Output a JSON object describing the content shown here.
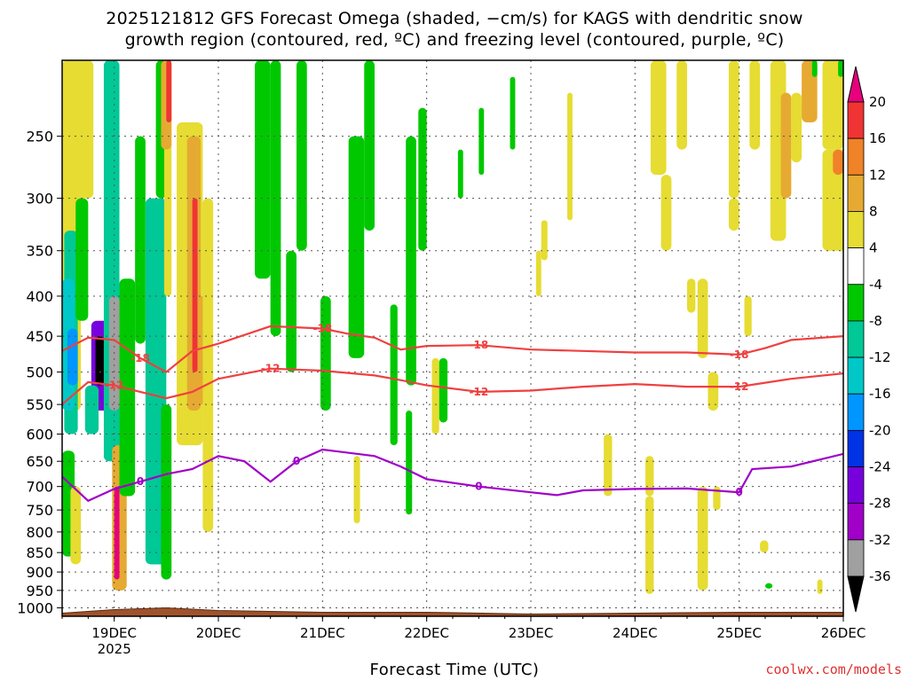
{
  "title_line1": "2025121812 GFS Forecast Omega (shaded, −cm/s) for KAGS with dendritic snow",
  "title_line2": "growth region (contoured, red, ºC) and freezing level (contoured, purple, ºC)",
  "xaxis_title": "Forecast Time (UTC)",
  "credit": "coolwx.com/models",
  "chart_data": {
    "type": "heatmap",
    "title": "2025121812 GFS Forecast Omega (shaded, −cm/s) for KAGS with dendritic snow growth region (contoured, red, ºC) and freezing level (contoured, purple, ºC)",
    "xlabel": "Forecast Time (UTC)",
    "ylabel": "",
    "x_ticks": [
      "19DEC",
      "20DEC",
      "21DEC",
      "22DEC",
      "23DEC",
      "24DEC",
      "25DEC",
      "26DEC"
    ],
    "x_tick_sublabel": "2025",
    "xlim": [
      "2025-12-18T12",
      "2025-12-26T00"
    ],
    "y_ticks": [
      250,
      300,
      350,
      400,
      450,
      500,
      550,
      600,
      650,
      700,
      750,
      800,
      850,
      900,
      950,
      1000
    ],
    "ylim": [
      200,
      1025
    ],
    "y_scale": "log-pressure",
    "grid": true,
    "colorbar": {
      "labels": [
        20,
        16,
        12,
        8,
        4,
        -4,
        -8,
        -12,
        -16,
        -20,
        -24,
        -28,
        -32,
        -36
      ],
      "colors": [
        "#e8007c",
        "#f03434",
        "#f08228",
        "#e6aa32",
        "#e6dc32",
        "#ffffff",
        "#00c800",
        "#00c896",
        "#00c8c8",
        "#0096ff",
        "#0032e6",
        "#7800dc",
        "#a000c8",
        "#a0a0a0",
        "#000000"
      ]
    },
    "contours": [
      {
        "name": "-18",
        "color": "#f04040",
        "labels": [
          "-18",
          "-18",
          "-18",
          "-18"
        ],
        "points": [
          [
            "2025-12-18T12",
            470
          ],
          [
            "2025-12-18T18",
            452
          ],
          [
            "2025-12-19T00",
            455
          ],
          [
            "2025-12-19T06",
            480
          ],
          [
            "2025-12-19T12",
            500
          ],
          [
            "2025-12-19T18",
            470
          ],
          [
            "2025-12-20T00",
            460
          ],
          [
            "2025-12-20T12",
            437
          ],
          [
            "2025-12-21T00",
            440
          ],
          [
            "2025-12-21T06",
            447
          ],
          [
            "2025-12-21T12",
            452
          ],
          [
            "2025-12-21T18",
            468
          ],
          [
            "2025-12-22T00",
            463
          ],
          [
            "2025-12-22T12",
            462
          ],
          [
            "2025-12-23T00",
            468
          ],
          [
            "2025-12-23T12",
            470
          ],
          [
            "2025-12-24T00",
            472
          ],
          [
            "2025-12-24T12",
            472
          ],
          [
            "2025-12-25T00",
            475
          ],
          [
            "2025-12-25T06",
            466
          ],
          [
            "2025-12-25T12",
            455
          ],
          [
            "2025-12-26T00",
            450
          ]
        ]
      },
      {
        "name": "-12",
        "color": "#f04040",
        "labels": [
          "-12",
          "-12",
          "-12",
          "-12"
        ],
        "points": [
          [
            "2025-12-18T12",
            550
          ],
          [
            "2025-12-18T18",
            515
          ],
          [
            "2025-12-19T00",
            520
          ],
          [
            "2025-12-19T06",
            530
          ],
          [
            "2025-12-19T12",
            540
          ],
          [
            "2025-12-19T18",
            530
          ],
          [
            "2025-12-20T00",
            510
          ],
          [
            "2025-12-20T12",
            495
          ],
          [
            "2025-12-21T00",
            498
          ],
          [
            "2025-12-21T12",
            505
          ],
          [
            "2025-12-21T18",
            512
          ],
          [
            "2025-12-22T00",
            520
          ],
          [
            "2025-12-22T12",
            530
          ],
          [
            "2025-12-23T00",
            528
          ],
          [
            "2025-12-23T12",
            522
          ],
          [
            "2025-12-24T00",
            518
          ],
          [
            "2025-12-24T12",
            522
          ],
          [
            "2025-12-25T00",
            522
          ],
          [
            "2025-12-25T12",
            510
          ],
          [
            "2025-12-26T00",
            502
          ]
        ]
      },
      {
        "name": "0",
        "color": "#a000c8",
        "labels": [
          "0",
          "0",
          "0",
          "0"
        ],
        "points": [
          [
            "2025-12-18T12",
            680
          ],
          [
            "2025-12-18T18",
            730
          ],
          [
            "2025-12-19T00",
            705
          ],
          [
            "2025-12-19T06",
            690
          ],
          [
            "2025-12-19T12",
            675
          ],
          [
            "2025-12-19T18",
            665
          ],
          [
            "2025-12-20T00",
            640
          ],
          [
            "2025-12-20T06",
            650
          ],
          [
            "2025-12-20T12",
            690
          ],
          [
            "2025-12-20T18",
            650
          ],
          [
            "2025-12-21T00",
            628
          ],
          [
            "2025-12-21T12",
            640
          ],
          [
            "2025-12-21T18",
            660
          ],
          [
            "2025-12-22T00",
            685
          ],
          [
            "2025-12-22T12",
            700
          ],
          [
            "2025-12-23T00",
            712
          ],
          [
            "2025-12-23T06",
            718
          ],
          [
            "2025-12-23T12",
            708
          ],
          [
            "2025-12-24T00",
            705
          ],
          [
            "2025-12-24T12",
            704
          ],
          [
            "2025-12-25T00",
            712
          ],
          [
            "2025-12-25T03",
            665
          ],
          [
            "2025-12-25T12",
            660
          ],
          [
            "2025-12-26T00",
            636
          ]
        ]
      }
    ]
  }
}
